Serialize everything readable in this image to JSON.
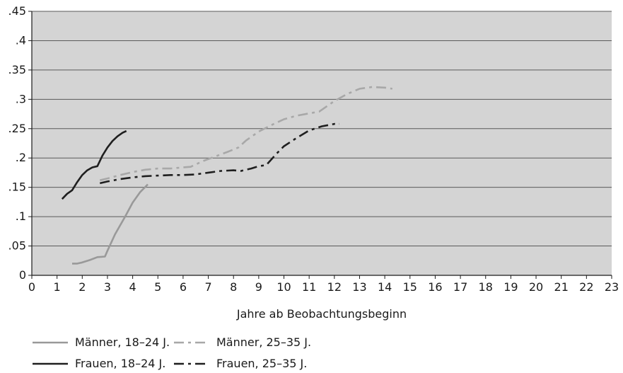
{
  "chart_data": {
    "type": "line",
    "title": "",
    "xlabel": "Jahre ab Beobachtungsbeginn",
    "ylabel": "",
    "xlim": [
      0,
      23
    ],
    "ylim": [
      0,
      0.45
    ],
    "x_ticks": [
      0,
      1,
      2,
      3,
      4,
      5,
      6,
      7,
      8,
      9,
      10,
      11,
      12,
      13,
      14,
      15,
      16,
      17,
      18,
      19,
      20,
      21,
      22,
      23
    ],
    "x_tick_labels": [
      "0",
      "1",
      "2",
      "3",
      "4",
      "5",
      "6",
      "7",
      "8",
      "9",
      "10",
      "11",
      "12",
      "13",
      "14",
      "15",
      "16",
      "17",
      "18",
      "19",
      "20",
      "21",
      "22",
      "23"
    ],
    "y_ticks": [
      0,
      0.05,
      0.1,
      0.15,
      0.2,
      0.25,
      0.3,
      0.35,
      0.4,
      0.45
    ],
    "y_tick_labels": [
      "0",
      ".05",
      ".1",
      ".15",
      ".2",
      ".25",
      ".3",
      ".35",
      ".4",
      ".45"
    ],
    "grid": true,
    "plot_background": "#d4d4d4",
    "legend_position": "bottom",
    "series": [
      {
        "name": "Männer, 18–24 J.",
        "color": "#999999",
        "dash": "solid",
        "x": [
          1.6,
          1.8,
          2.0,
          2.3,
          2.6,
          2.9,
          3.0,
          3.3,
          3.7,
          4.0,
          4.3,
          4.6
        ],
        "y": [
          0.02,
          0.02,
          0.022,
          0.026,
          0.031,
          0.032,
          0.042,
          0.07,
          0.1,
          0.124,
          0.142,
          0.155
        ]
      },
      {
        "name": "Männer, 25–35 J.",
        "color": "#a8a8a8",
        "dash": "dashdot",
        "x": [
          2.7,
          3.0,
          3.5,
          4.0,
          4.5,
          5.0,
          5.5,
          6.0,
          6.3,
          6.8,
          7.3,
          7.8,
          8.2,
          8.5,
          9.0,
          9.5,
          10.0,
          10.5,
          11.0,
          11.4,
          12.0,
          12.5,
          13.0,
          13.5,
          14.0,
          14.3
        ],
        "y": [
          0.162,
          0.165,
          0.171,
          0.176,
          0.18,
          0.182,
          0.182,
          0.184,
          0.185,
          0.195,
          0.203,
          0.211,
          0.218,
          0.23,
          0.245,
          0.256,
          0.266,
          0.272,
          0.276,
          0.279,
          0.297,
          0.309,
          0.318,
          0.321,
          0.32,
          0.318
        ]
      },
      {
        "name": "Frauen, 18–24 J.",
        "color": "#1f1f1f",
        "dash": "solid",
        "x": [
          1.2,
          1.4,
          1.6,
          1.8,
          2.0,
          2.2,
          2.4,
          2.6,
          2.8,
          3.0,
          3.2,
          3.4,
          3.6,
          3.75
        ],
        "y": [
          0.13,
          0.139,
          0.145,
          0.159,
          0.171,
          0.179,
          0.184,
          0.186,
          0.204,
          0.218,
          0.229,
          0.237,
          0.243,
          0.246
        ]
      },
      {
        "name": "Frauen, 25–35 J.",
        "color": "#1f1f1f",
        "dash": "dashdot",
        "x": [
          2.7,
          3.0,
          3.5,
          4.0,
          4.5,
          5.0,
          5.5,
          6.0,
          6.5,
          7.0,
          7.5,
          8.0,
          8.3,
          8.7,
          9.0,
          9.3,
          9.7,
          10.0,
          10.5,
          11.0,
          11.5,
          12.0,
          12.2
        ],
        "y": [
          0.157,
          0.16,
          0.164,
          0.167,
          0.169,
          0.17,
          0.171,
          0.171,
          0.172,
          0.175,
          0.178,
          0.179,
          0.178,
          0.182,
          0.186,
          0.188,
          0.207,
          0.22,
          0.234,
          0.247,
          0.254,
          0.258,
          0.258
        ]
      }
    ]
  }
}
